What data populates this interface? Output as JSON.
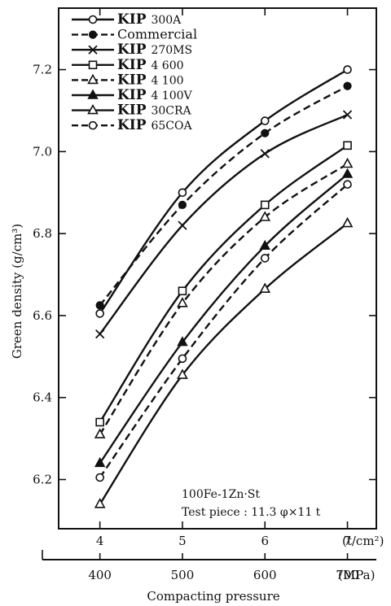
{
  "chart_data": {
    "type": "line",
    "x": [
      4,
      5,
      6,
      7
    ],
    "x_unit_label": "(t/cm²)",
    "x2_ticks": [
      "400",
      "500",
      "600",
      "700"
    ],
    "x2_unit_label": "(MPa)",
    "xlabel": "Compacting pressure",
    "ylabel": "Green density (g/cm³)",
    "xlim": [
      3.5,
      7.35
    ],
    "ylim": [
      6.08,
      7.35
    ],
    "yticks": [
      6.2,
      6.4,
      6.6,
      6.8,
      7.0,
      7.2
    ],
    "ytick_labels": [
      "6.2",
      "6.4",
      "6.6",
      "6.8",
      "7.0",
      "7.2"
    ],
    "xtick_labels": [
      "4",
      "5",
      "6",
      "7"
    ],
    "annotation": [
      "100Fe-1Zn·St",
      "Test piece : 11.3 φ×11 t"
    ],
    "legend_position": "top-left",
    "series": [
      {
        "name": "300A",
        "prefix": "KIP",
        "style": "solid",
        "marker": "open-circle",
        "values": [
          6.605,
          6.9,
          7.075,
          7.2
        ]
      },
      {
        "name": "Commercial",
        "prefix": "",
        "style": "dashed",
        "marker": "filled-circle",
        "values": [
          6.625,
          6.87,
          7.045,
          7.16
        ]
      },
      {
        "name": "270MS",
        "prefix": "KIP",
        "style": "solid",
        "marker": "x",
        "values": [
          6.555,
          6.82,
          6.995,
          7.09
        ]
      },
      {
        "name": "4 600",
        "prefix": "KIP",
        "style": "solid",
        "marker": "open-square",
        "values": [
          6.34,
          6.66,
          6.87,
          7.015
        ]
      },
      {
        "name": "4 100",
        "prefix": "KIP",
        "style": "dashed",
        "marker": "open-triangle",
        "values": [
          6.31,
          6.63,
          6.84,
          6.97
        ]
      },
      {
        "name": "4 100V",
        "prefix": "KIP",
        "style": "solid",
        "marker": "filled-triangle",
        "values": [
          6.24,
          6.535,
          6.77,
          6.945
        ]
      },
      {
        "name": "30CRA",
        "prefix": "KIP",
        "style": "solid",
        "marker": "open-triangle",
        "values": [
          6.14,
          6.455,
          6.665,
          6.825
        ]
      },
      {
        "name": "65COA",
        "prefix": "KIP",
        "style": "dashed",
        "marker": "open-circle",
        "values": [
          6.205,
          6.495,
          6.74,
          6.92
        ]
      }
    ]
  }
}
